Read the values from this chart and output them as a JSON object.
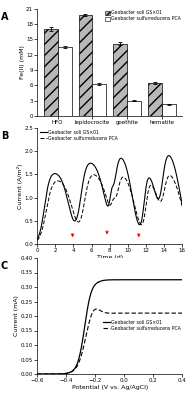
{
  "panel_A": {
    "categories": [
      "HFO",
      "lepidocrocite",
      "goethite",
      "hematite"
    ],
    "GS001": [
      17.0,
      19.8,
      14.2,
      6.5
    ],
    "PCA": [
      13.5,
      6.3,
      3.0,
      2.3
    ],
    "GS001_err": [
      0.35,
      0.25,
      0.3,
      0.2
    ],
    "PCA_err": [
      0.2,
      0.2,
      0.15,
      0.1
    ],
    "ylabel": "Fe(II) (mM)",
    "ylim": [
      0,
      21.0
    ],
    "yticks": [
      0.0,
      3.0,
      6.0,
      9.0,
      12.0,
      15.0,
      18.0,
      21.0
    ],
    "label_A": "A"
  },
  "panel_B": {
    "ylabel": "Current (A/m²)",
    "xlabel": "Time (d)",
    "xlim": [
      0,
      16
    ],
    "ylim": [
      0.0,
      2.5
    ],
    "yticks": [
      0.0,
      0.5,
      1.0,
      1.5,
      2.0,
      2.5
    ],
    "label_B": "B"
  },
  "panel_C": {
    "ylabel": "Current (mA)",
    "xlabel": "Potential (V vs. Ag/AgCl)",
    "xlim": [
      -0.6,
      0.4
    ],
    "ylim": [
      0.0,
      0.4
    ],
    "yticks": [
      0.0,
      0.05,
      0.1,
      0.15,
      0.2,
      0.25,
      0.3,
      0.35,
      0.4
    ],
    "label_C": "C"
  },
  "colors": {
    "GS001_bar": "#b8b8b8",
    "PCA_bar": "#ffffff",
    "red_arrow": "#ff0000"
  },
  "bg_color": "#ffffff"
}
